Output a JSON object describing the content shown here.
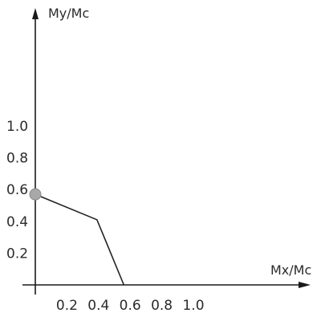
{
  "chart_data": {
    "type": "line",
    "title": "",
    "xlabel": "Mx/Mc",
    "ylabel": "My/Mc",
    "xlim": [
      0,
      1.1
    ],
    "ylim": [
      0,
      1.1
    ],
    "x_ticks": [
      {
        "value": 0.2,
        "label": "0.2"
      },
      {
        "value": 0.4,
        "label": "0.4"
      },
      {
        "value": 0.6,
        "label": "0.6"
      },
      {
        "value": 0.8,
        "label": "0.8"
      },
      {
        "value": 1.0,
        "label": "1.0"
      }
    ],
    "y_ticks": [
      {
        "value": 0.2,
        "label": "0.2"
      },
      {
        "value": 0.4,
        "label": "0.4"
      },
      {
        "value": 0.6,
        "label": "0.6"
      },
      {
        "value": 0.8,
        "label": "0.8"
      },
      {
        "value": 1.0,
        "label": "1.0"
      }
    ],
    "grid": false,
    "series": [
      {
        "x": [
          0,
          0.39,
          0.56
        ],
        "y": [
          0.57,
          0.41,
          0
        ],
        "color": "#222222"
      }
    ],
    "marker": {
      "x": 0,
      "y": 0.57,
      "color": "#a8a8a8"
    }
  }
}
